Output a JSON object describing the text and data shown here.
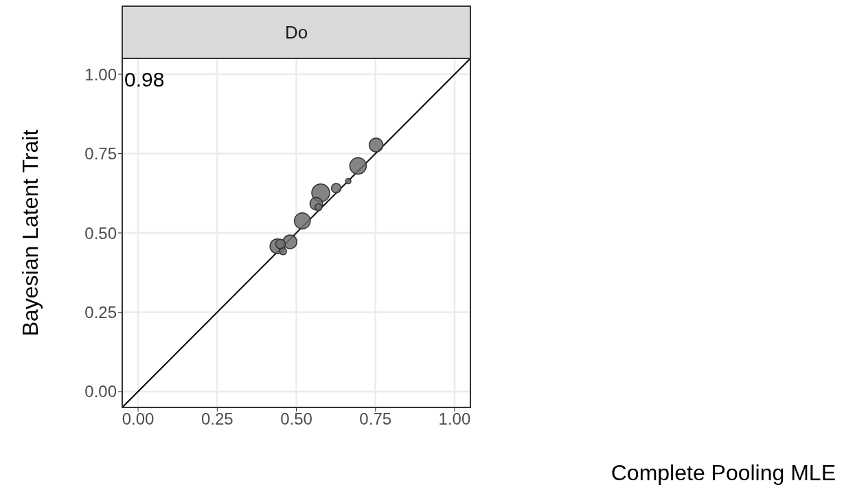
{
  "chart_data": {
    "type": "bubble",
    "title": "Do",
    "ylabel": "Bayesian Latent Trait",
    "xlim": [
      -0.05,
      1.05
    ],
    "ylim": [
      -0.05,
      1.05
    ],
    "xticks": [
      {
        "value": 0,
        "label": "0.00"
      },
      {
        "value": 0.25,
        "label": "0.25"
      },
      {
        "value": 0.5,
        "label": "0.50"
      },
      {
        "value": 0.75,
        "label": "0.75"
      },
      {
        "value": 1,
        "label": "1.00"
      }
    ],
    "yticks": [
      {
        "value": 0,
        "label": "0.00"
      },
      {
        "value": 0.25,
        "label": "0.25"
      },
      {
        "value": 0.5,
        "label": "0.50"
      },
      {
        "value": 0.75,
        "label": "0.75"
      },
      {
        "value": 1,
        "label": "1.00"
      }
    ],
    "grid": true,
    "annotations": [
      "0.98",
      "Complete Pooling MLE"
    ],
    "series": [
      {
        "color": "#6e6e6e",
        "x": [
          0.752,
          0.695,
          0.664,
          0.626,
          0.577,
          0.563,
          0.57,
          0.519,
          0.48,
          0.44,
          0.45,
          0.458
        ],
        "values": [
          0.777,
          0.711,
          0.663,
          0.641,
          0.626,
          0.592,
          0.581,
          0.538,
          0.472,
          0.458,
          0.465,
          0.442
        ],
        "sizes": [
          0.59,
          0.85,
          0.09,
          0.29,
          1,
          0.51,
          0.15,
          0.8,
          0.59,
          0.67,
          0.29,
          0.15
        ]
      },
      {
        "type": "line",
        "color": "#000000",
        "x": [
          -0.05,
          1.05
        ],
        "values": [
          -0.05,
          1.05
        ]
      }
    ]
  }
}
